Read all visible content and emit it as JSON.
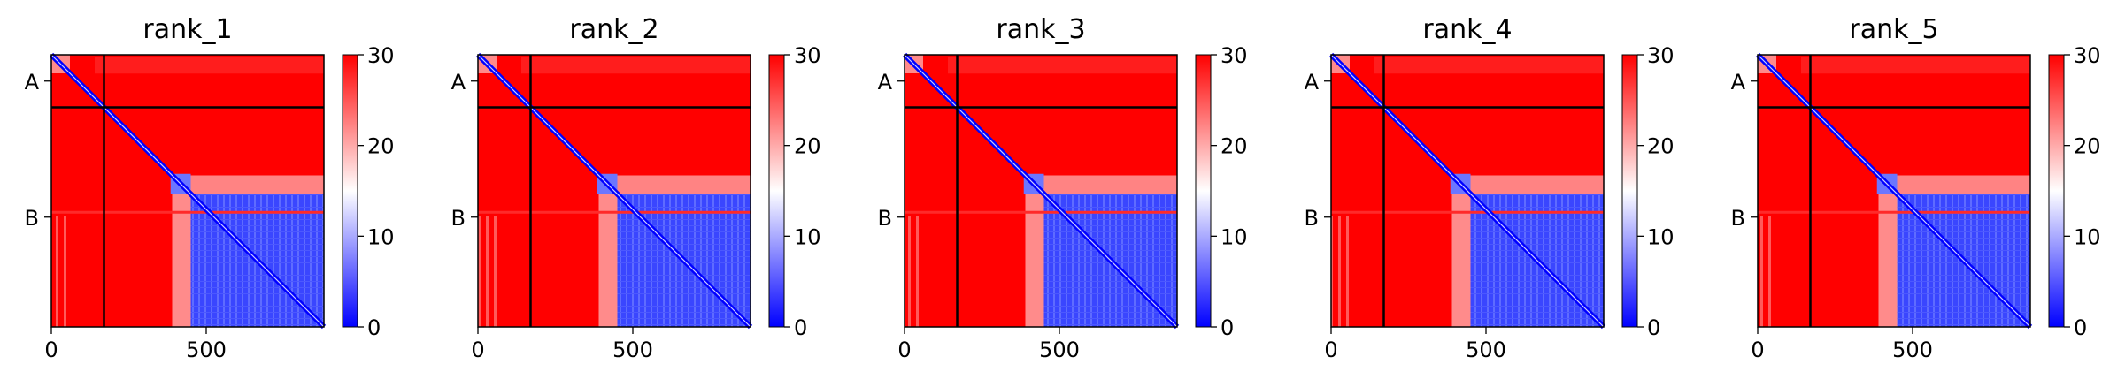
{
  "chart_data": [
    {
      "type": "heatmap",
      "title": "rank_1",
      "xlabel": "",
      "ylabel": "",
      "x_ticks": [
        0,
        500
      ],
      "xlim": [
        0,
        880
      ],
      "y_tick_labels": [
        "A",
        "B"
      ],
      "chain_boundary": 170,
      "colorbar": {
        "min": 0,
        "max": 30,
        "ticks": [
          0,
          10,
          20,
          30
        ],
        "colormap": "bwr"
      },
      "grid": false
    },
    {
      "type": "heatmap",
      "title": "rank_2",
      "xlabel": "",
      "ylabel": "",
      "x_ticks": [
        0,
        500
      ],
      "xlim": [
        0,
        880
      ],
      "y_tick_labels": [
        "A",
        "B"
      ],
      "chain_boundary": 170,
      "colorbar": {
        "min": 0,
        "max": 30,
        "ticks": [
          0,
          10,
          20,
          30
        ],
        "colormap": "bwr"
      },
      "grid": false
    },
    {
      "type": "heatmap",
      "title": "rank_3",
      "xlabel": "",
      "ylabel": "",
      "x_ticks": [
        0,
        500
      ],
      "xlim": [
        0,
        880
      ],
      "y_tick_labels": [
        "A",
        "B"
      ],
      "chain_boundary": 170,
      "colorbar": {
        "min": 0,
        "max": 30,
        "ticks": [
          0,
          10,
          20,
          30
        ],
        "colormap": "bwr"
      },
      "grid": false
    },
    {
      "type": "heatmap",
      "title": "rank_4",
      "xlabel": "",
      "ylabel": "",
      "x_ticks": [
        0,
        500
      ],
      "xlim": [
        0,
        880
      ],
      "y_tick_labels": [
        "A",
        "B"
      ],
      "chain_boundary": 170,
      "colorbar": {
        "min": 0,
        "max": 30,
        "ticks": [
          0,
          10,
          20,
          30
        ],
        "colormap": "bwr"
      },
      "grid": false
    },
    {
      "type": "heatmap",
      "title": "rank_5",
      "xlabel": "",
      "ylabel": "",
      "x_ticks": [
        0,
        500
      ],
      "xlim": [
        0,
        880
      ],
      "y_tick_labels": [
        "A",
        "B"
      ],
      "chain_boundary": 170,
      "colorbar": {
        "min": 0,
        "max": 30,
        "ticks": [
          0,
          10,
          20,
          30
        ],
        "colormap": "bwr"
      },
      "grid": false
    }
  ]
}
